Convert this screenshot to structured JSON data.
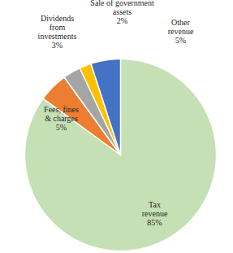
{
  "chart_data": {
    "type": "pie",
    "categories": [
      "Tax\nrevenue",
      "Fees, fines\n& charges",
      "Dividends\nfrom\ninvestments",
      "Sale of government\nassets",
      "Other\nrevenue"
    ],
    "values": [
      85,
      5,
      3,
      2,
      5
    ],
    "value_labels": [
      "85%",
      "5%",
      "3%",
      "2%",
      "5%"
    ],
    "colors": [
      "#c5e0b4",
      "#ed7d31",
      "#a5a5a5",
      "#ffc000",
      "#4472c4"
    ],
    "data_labels": true
  }
}
